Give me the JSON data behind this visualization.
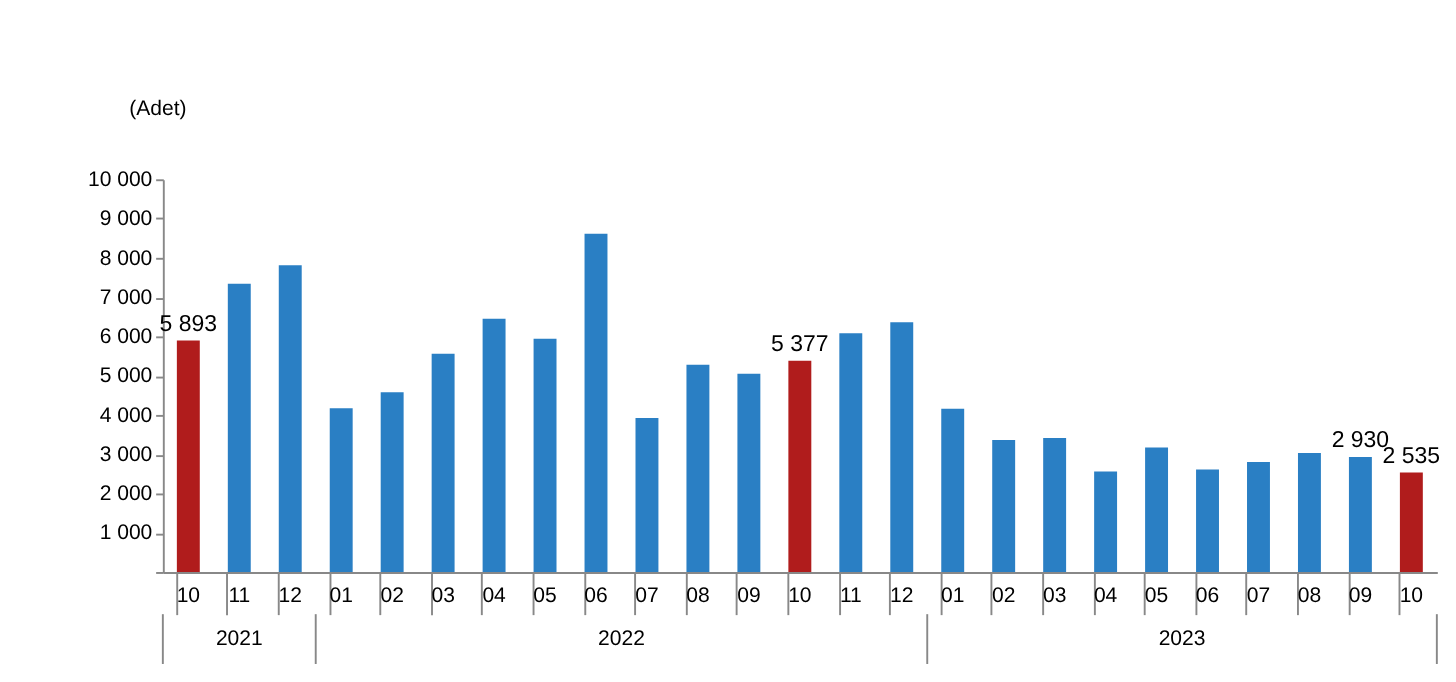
{
  "chart_data": {
    "type": "bar",
    "ylabel": "(Adet)",
    "categories": [
      "10",
      "11",
      "12",
      "01",
      "02",
      "03",
      "04",
      "05",
      "06",
      "07",
      "08",
      "09",
      "10",
      "11",
      "12",
      "01",
      "02",
      "03",
      "04",
      "05",
      "06",
      "07",
      "08",
      "09",
      "10"
    ],
    "values": [
      5893,
      7340,
      7810,
      4170,
      4580,
      5560,
      6450,
      5940,
      8610,
      3920,
      5280,
      5050,
      5377,
      6080,
      6360,
      4160,
      3360,
      3410,
      2560,
      3170,
      2610,
      2800,
      3030,
      2930,
      2535
    ],
    "colors": [
      "#b01c1c",
      "#2a7fc4",
      "#2a7fc4",
      "#2a7fc4",
      "#2a7fc4",
      "#2a7fc4",
      "#2a7fc4",
      "#2a7fc4",
      "#2a7fc4",
      "#2a7fc4",
      "#2a7fc4",
      "#2a7fc4",
      "#b01c1c",
      "#2a7fc4",
      "#2a7fc4",
      "#2a7fc4",
      "#2a7fc4",
      "#2a7fc4",
      "#2a7fc4",
      "#2a7fc4",
      "#2a7fc4",
      "#2a7fc4",
      "#2a7fc4",
      "#2a7fc4",
      "#b01c1c"
    ],
    "value_labels": [
      "5 893",
      null,
      null,
      null,
      null,
      null,
      null,
      null,
      null,
      null,
      null,
      null,
      "5 377",
      null,
      null,
      null,
      null,
      null,
      null,
      null,
      null,
      null,
      null,
      "2 930",
      "2 535"
    ],
    "ylim": [
      0,
      10000
    ],
    "yticks": [
      {
        "value": 0,
        "label": null
      },
      {
        "value": 1000,
        "label": "1 000"
      },
      {
        "value": 2000,
        "label": "2 000"
      },
      {
        "value": 3000,
        "label": "3 000"
      },
      {
        "value": 4000,
        "label": "4 000"
      },
      {
        "value": 5000,
        "label": "5 000"
      },
      {
        "value": 6000,
        "label": "6 000"
      },
      {
        "value": 7000,
        "label": "7 000"
      },
      {
        "value": 8000,
        "label": "8 000"
      },
      {
        "value": 9000,
        "label": "9 000"
      },
      {
        "value": 10000,
        "label": "10 000"
      }
    ],
    "annotations": [
      "2021",
      "2022",
      "2023"
    ],
    "grid": false,
    "legend": false
  }
}
